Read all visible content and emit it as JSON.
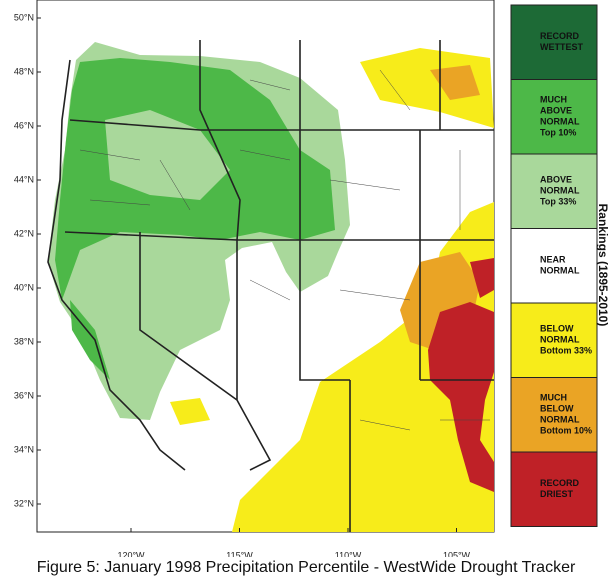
{
  "map": {
    "lat_labels": [
      "50°N",
      "48°N",
      "46°N",
      "44°N",
      "42°N",
      "40°N",
      "38°N",
      "36°N",
      "34°N",
      "32°N"
    ],
    "lon_labels": [
      "120°W",
      "115°W",
      "110°W",
      "105°W"
    ]
  },
  "legend": {
    "title": "Rankings (1895-2010)",
    "items": [
      {
        "lines": [
          "RECORD",
          "WETTEST"
        ],
        "color": "#1d6a36"
      },
      {
        "lines": [
          "MUCH",
          "ABOVE",
          "NORMAL",
          "Top 10%"
        ],
        "color": "#4db848"
      },
      {
        "lines": [
          "ABOVE",
          "NORMAL",
          "Top 33%"
        ],
        "color": "#a9d89b"
      },
      {
        "lines": [
          "NEAR",
          "NORMAL"
        ],
        "color": "#ffffff"
      },
      {
        "lines": [
          "BELOW",
          "NORMAL",
          "Bottom 33%"
        ],
        "color": "#f7ec1a"
      },
      {
        "lines": [
          "MUCH",
          "BELOW",
          "NORMAL",
          "Bottom 10%"
        ],
        "color": "#eaa425"
      },
      {
        "lines": [
          "RECORD",
          "DRIEST"
        ],
        "color": "#bf2127"
      }
    ]
  },
  "caption": "Figure 5: January 1998 Precipitation Percentile - WestWide Drought Tracker"
}
